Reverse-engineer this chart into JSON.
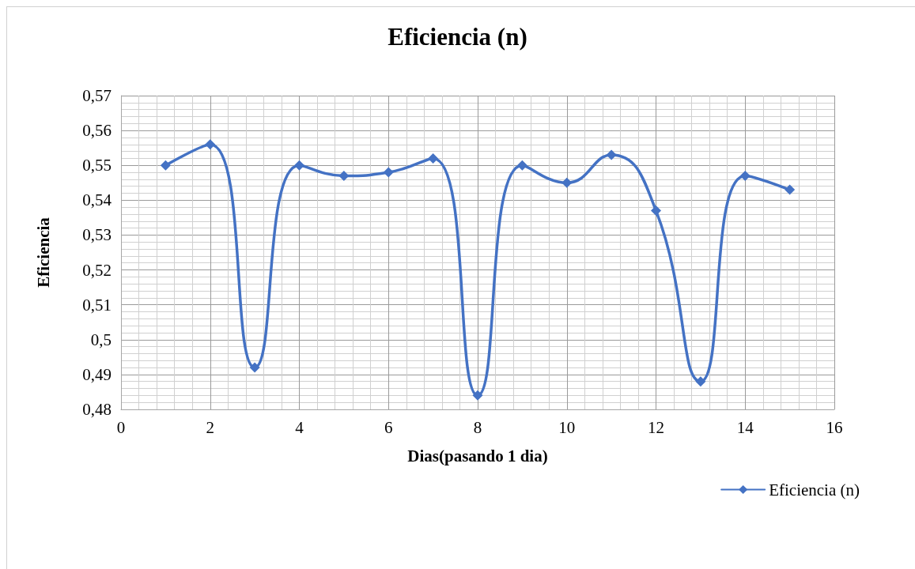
{
  "chart_data": {
    "type": "line",
    "title": "Eficiencia (n)",
    "xlabel": "Dias(pasando 1 dia)",
    "ylabel": "Eficiencia",
    "x": [
      1,
      2,
      3,
      4,
      5,
      6,
      7,
      8,
      9,
      10,
      11,
      12,
      13,
      14,
      15
    ],
    "series": [
      {
        "name": "Eficiencia (n)",
        "color": "#4472c4",
        "values": [
          0.55,
          0.556,
          0.492,
          0.55,
          0.547,
          0.548,
          0.552,
          0.484,
          0.55,
          0.545,
          0.553,
          0.537,
          0.488,
          0.547,
          0.543
        ]
      }
    ],
    "xlim": [
      0,
      16
    ],
    "xticks": [
      0,
      2,
      4,
      6,
      8,
      10,
      12,
      14,
      16
    ],
    "ylim": [
      0.48,
      0.57
    ],
    "yticks": [
      {
        "value": 0.48,
        "label": "0,48"
      },
      {
        "value": 0.49,
        "label": "0,49"
      },
      {
        "value": 0.5,
        "label": "0,5"
      },
      {
        "value": 0.51,
        "label": "0,51"
      },
      {
        "value": 0.52,
        "label": "0,52"
      },
      {
        "value": 0.53,
        "label": "0,53"
      },
      {
        "value": 0.54,
        "label": "0,54"
      },
      {
        "value": 0.55,
        "label": "0,55"
      },
      {
        "value": 0.56,
        "label": "0,56"
      },
      {
        "value": 0.57,
        "label": "0,57"
      }
    ],
    "grid": true,
    "legend": "bottom right",
    "marker": "diamond"
  }
}
